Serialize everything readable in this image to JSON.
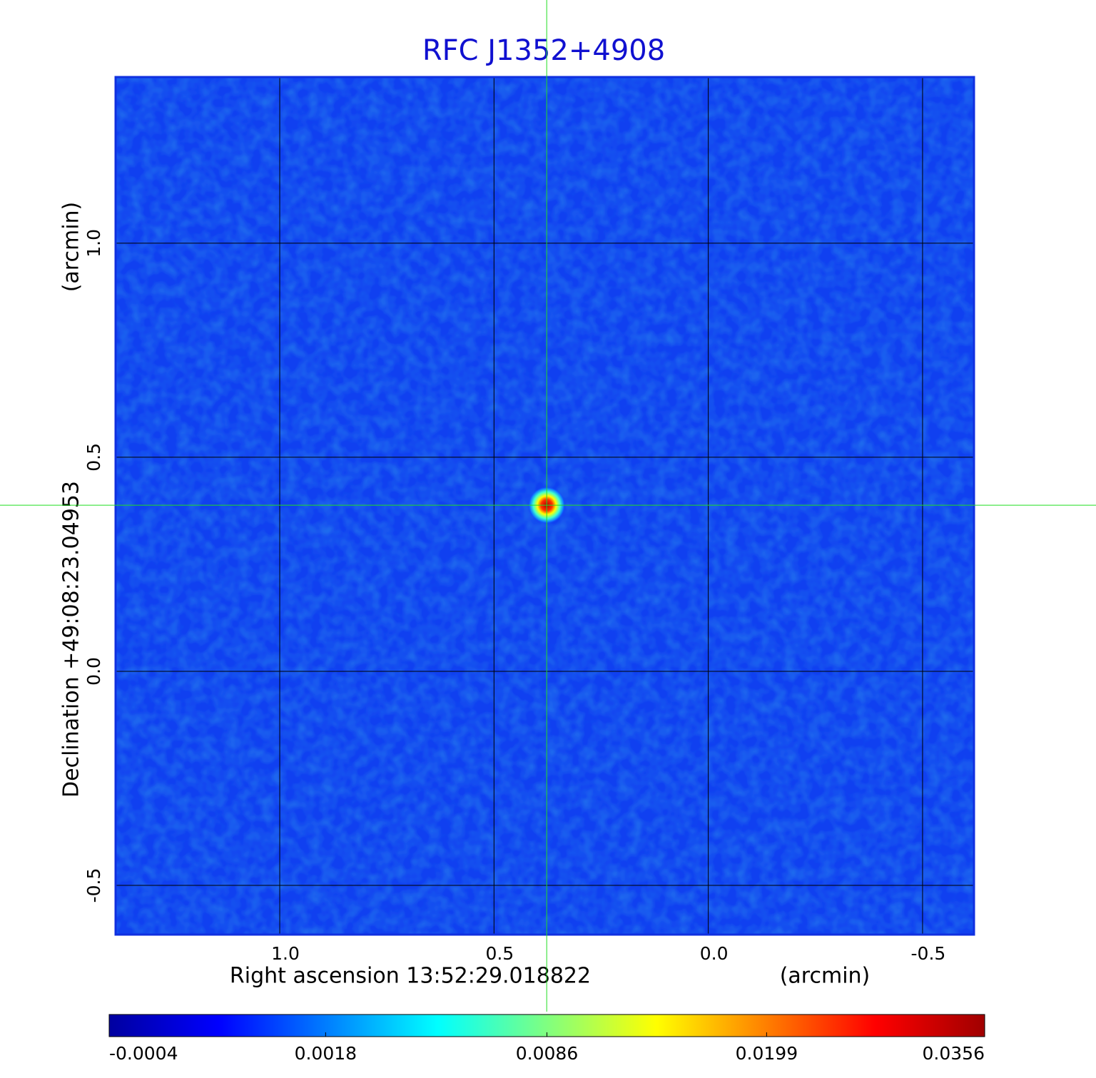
{
  "chart_data": {
    "type": "image",
    "title": "RFC J1352+4908",
    "xlabel": "Right ascension  13:52:29.018822",
    "xunit": "(arcmin)",
    "ylabel": "Declination  +49:08:23.04953",
    "yunit": "(arcmin)",
    "xlim": [
      1.383,
      -0.62
    ],
    "ylim": [
      -0.615,
      1.388
    ],
    "xticks": [
      {
        "value": 1,
        "label": "1.0"
      },
      0.5,
      {
        "value": 0,
        "label": "0.0"
      },
      -0.5
    ],
    "yticks": [
      {
        "value": 1,
        "label": "1.0"
      },
      0.5,
      {
        "value": 0,
        "label": "0.0"
      },
      -0.5
    ],
    "grid": true,
    "source": {
      "x": 0.377,
      "y": 0.388,
      "peak": 0.0356
    },
    "crosshair": {
      "x": 0.377,
      "y": 0.388,
      "color": "#22dd22"
    },
    "colormap": "jet",
    "colorbar": {
      "lim": [
        -0.0004,
        0.0356
      ],
      "scale": "sqrt",
      "ticks": [
        -0.0004,
        0.0018,
        0.0086,
        0.0199,
        0.0356
      ]
    }
  }
}
